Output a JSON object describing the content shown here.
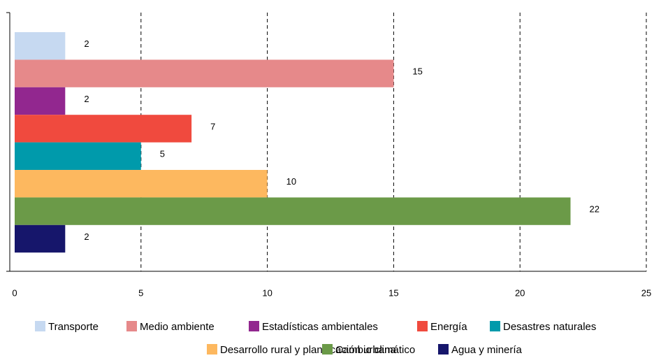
{
  "chart_data": {
    "type": "barh",
    "categories": [
      "Transporte",
      "Medio ambiente",
      "Estadísticas ambientales",
      "Energía",
      "Desastres naturales",
      "Desarrollo rural y planificación urbana",
      "Cambio climático",
      "Agua y minería"
    ],
    "values": [
      2,
      15,
      2,
      7,
      5,
      10,
      22,
      2
    ],
    "colors": [
      "#c6d9f1",
      "#e6898a",
      "#92278f",
      "#f04a3e",
      "#009aab",
      "#fdb85f",
      "#6b9a48",
      "#16166b"
    ],
    "xlim": [
      0,
      25
    ],
    "xticks": [
      0,
      5,
      10,
      15,
      20,
      25
    ],
    "grid": true,
    "legend": "bottom"
  }
}
